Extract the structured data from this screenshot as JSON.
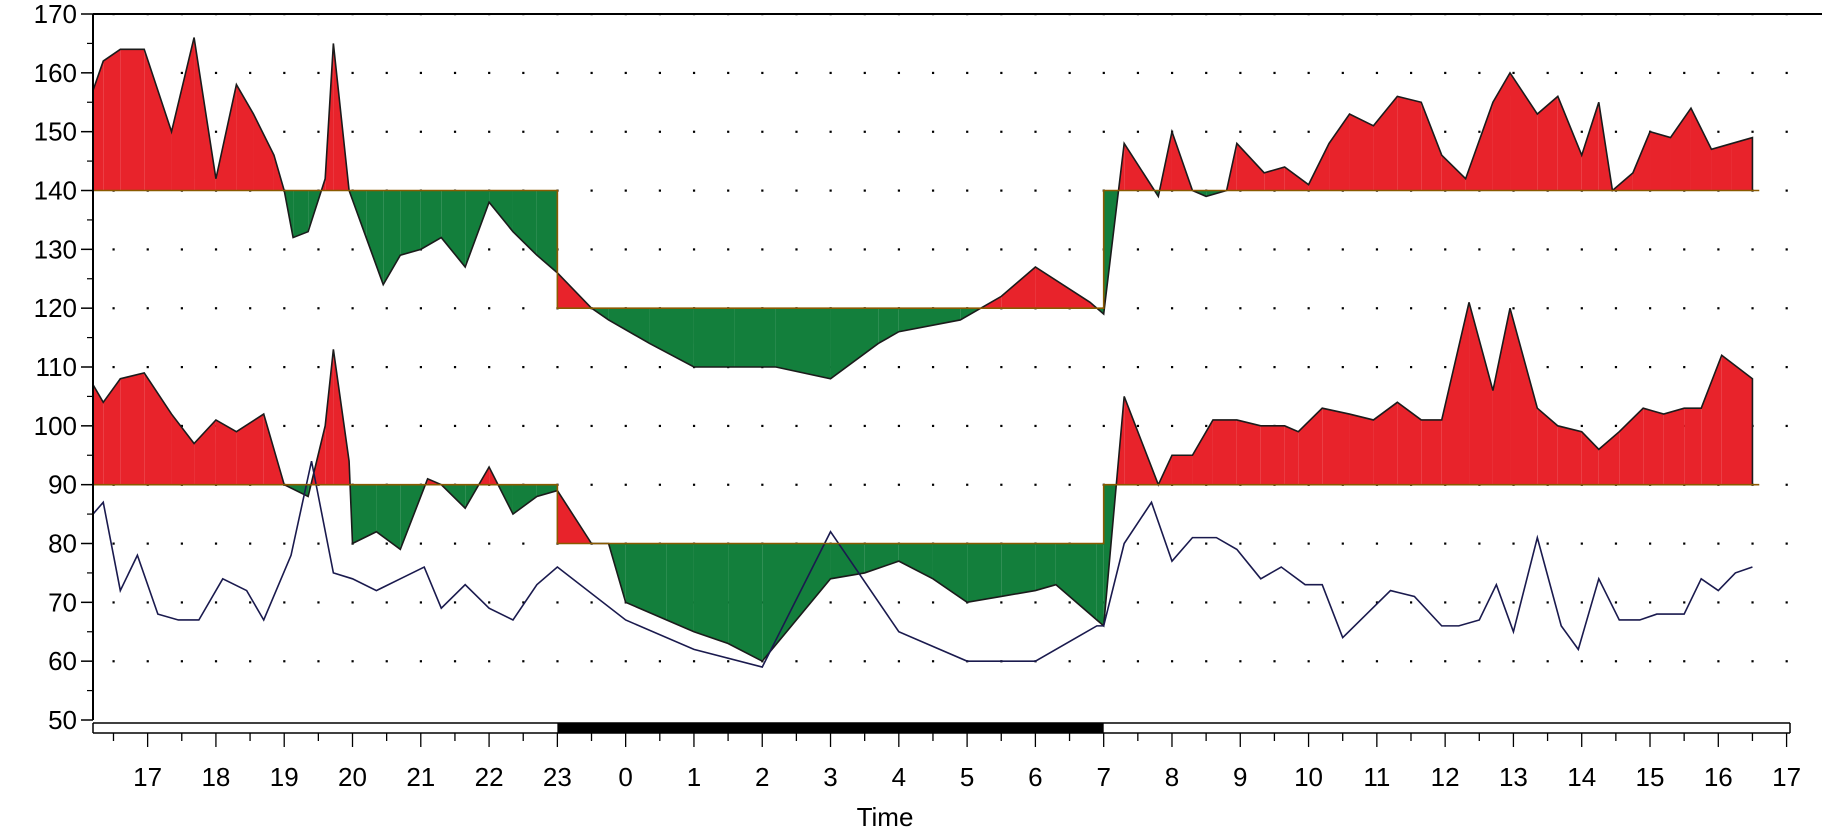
{
  "chart_data": {
    "type": "area",
    "xlabel": "Time",
    "ylabel": "",
    "ylim": [
      50,
      170
    ],
    "yticks": [
      50,
      60,
      70,
      80,
      90,
      100,
      110,
      120,
      130,
      140,
      150,
      160,
      170
    ],
    "xrange": [
      16.2,
      41.05
    ],
    "xticks": [
      {
        "x": 17,
        "label": "17"
      },
      {
        "x": 18,
        "label": "18"
      },
      {
        "x": 19,
        "label": "19"
      },
      {
        "x": 20,
        "label": "20"
      },
      {
        "x": 21,
        "label": "21"
      },
      {
        "x": 22,
        "label": "22"
      },
      {
        "x": 23,
        "label": "23"
      },
      {
        "x": 24,
        "label": "0"
      },
      {
        "x": 25,
        "label": "1"
      },
      {
        "x": 26,
        "label": "2"
      },
      {
        "x": 27,
        "label": "3"
      },
      {
        "x": 28,
        "label": "4"
      },
      {
        "x": 29,
        "label": "5"
      },
      {
        "x": 30,
        "label": "6"
      },
      {
        "x": 31,
        "label": "7"
      },
      {
        "x": 32,
        "label": "8"
      },
      {
        "x": 33,
        "label": "9"
      },
      {
        "x": 34,
        "label": "10"
      },
      {
        "x": 35,
        "label": "11"
      },
      {
        "x": 36,
        "label": "12"
      },
      {
        "x": 37,
        "label": "13"
      },
      {
        "x": 38,
        "label": "14"
      },
      {
        "x": 39,
        "label": "15"
      },
      {
        "x": 40,
        "label": "16"
      },
      {
        "x": 41,
        "label": "17"
      }
    ],
    "grid": "dotted",
    "night_period": [
      23,
      31
    ],
    "colors": {
      "above": "#e8232b",
      "below": "#137f3c",
      "line": "#1a1a4e"
    },
    "series": [
      {
        "role": "systolic",
        "threshold_steps": [
          {
            "x": 16.2,
            "y": 140
          },
          {
            "x": 23,
            "y": 140
          },
          {
            "x": 23,
            "y": 120
          },
          {
            "x": 31,
            "y": 120
          },
          {
            "x": 31,
            "y": 140
          },
          {
            "x": 40.6,
            "y": 140
          }
        ],
        "points": [
          [
            16.2,
            157
          ],
          [
            16.35,
            162
          ],
          [
            16.6,
            164
          ],
          [
            16.95,
            164
          ],
          [
            17.35,
            150
          ],
          [
            17.68,
            166
          ],
          [
            18.0,
            142
          ],
          [
            18.3,
            158
          ],
          [
            18.55,
            153
          ],
          [
            18.85,
            146
          ],
          [
            19.0,
            140
          ],
          [
            19.13,
            132
          ],
          [
            19.35,
            133
          ],
          [
            19.6,
            142
          ],
          [
            19.72,
            165
          ],
          [
            19.95,
            140
          ],
          [
            20.2,
            132
          ],
          [
            20.45,
            124
          ],
          [
            20.7,
            129
          ],
          [
            21.0,
            130
          ],
          [
            21.3,
            132
          ],
          [
            21.65,
            127
          ],
          [
            22.0,
            138
          ],
          [
            22.35,
            133
          ],
          [
            22.7,
            129
          ],
          [
            23.0,
            126
          ],
          [
            23.0,
            126
          ],
          [
            23.5,
            120
          ],
          [
            23.75,
            118
          ],
          [
            24.35,
            114
          ],
          [
            25.0,
            110
          ],
          [
            25.6,
            110
          ],
          [
            26.2,
            110
          ],
          [
            27.0,
            108
          ],
          [
            27.7,
            114
          ],
          [
            28.0,
            116
          ],
          [
            28.9,
            118
          ],
          [
            29.2,
            120
          ],
          [
            29.5,
            122
          ],
          [
            30.0,
            127
          ],
          [
            30.8,
            121
          ],
          [
            31.0,
            119
          ],
          [
            31.3,
            148
          ],
          [
            31.8,
            139
          ],
          [
            32.0,
            150
          ],
          [
            32.3,
            140
          ],
          [
            32.5,
            139
          ],
          [
            32.8,
            140
          ],
          [
            32.95,
            148
          ],
          [
            33.35,
            143
          ],
          [
            33.65,
            144
          ],
          [
            34.0,
            141
          ],
          [
            34.3,
            148
          ],
          [
            34.6,
            153
          ],
          [
            34.95,
            151
          ],
          [
            35.3,
            156
          ],
          [
            35.65,
            155
          ],
          [
            35.95,
            146
          ],
          [
            36.3,
            142
          ],
          [
            36.7,
            155
          ],
          [
            36.95,
            160
          ],
          [
            37.35,
            153
          ],
          [
            37.65,
            156
          ],
          [
            38.0,
            146
          ],
          [
            38.25,
            155
          ],
          [
            38.45,
            140
          ],
          [
            38.75,
            143
          ],
          [
            39.0,
            150
          ],
          [
            39.3,
            149
          ],
          [
            39.6,
            154
          ],
          [
            39.9,
            147
          ],
          [
            40.2,
            148
          ],
          [
            40.5,
            149
          ],
          [
            40.5,
            140
          ]
        ]
      },
      {
        "role": "diastolic",
        "threshold_steps": [
          {
            "x": 16.2,
            "y": 90
          },
          {
            "x": 23,
            "y": 90
          },
          {
            "x": 23,
            "y": 80
          },
          {
            "x": 31,
            "y": 80
          },
          {
            "x": 31,
            "y": 90
          },
          {
            "x": 40.6,
            "y": 90
          }
        ],
        "points": [
          [
            16.2,
            107
          ],
          [
            16.35,
            104
          ],
          [
            16.6,
            108
          ],
          [
            16.95,
            109
          ],
          [
            17.35,
            102
          ],
          [
            17.68,
            97
          ],
          [
            18.0,
            101
          ],
          [
            18.3,
            99
          ],
          [
            18.7,
            102
          ],
          [
            19.0,
            90
          ],
          [
            19.35,
            88
          ],
          [
            19.6,
            100
          ],
          [
            19.72,
            113
          ],
          [
            19.95,
            94
          ],
          [
            20.0,
            80
          ],
          [
            20.35,
            82
          ],
          [
            20.7,
            79
          ],
          [
            21.1,
            91
          ],
          [
            21.3,
            90
          ],
          [
            21.65,
            86
          ],
          [
            22.0,
            93
          ],
          [
            22.35,
            85
          ],
          [
            22.7,
            88
          ],
          [
            23.0,
            89
          ],
          [
            23.0,
            89
          ],
          [
            23.5,
            80
          ],
          [
            23.75,
            80
          ],
          [
            24.0,
            70
          ],
          [
            24.6,
            67
          ],
          [
            25.0,
            65
          ],
          [
            25.5,
            63
          ],
          [
            26.0,
            60
          ],
          [
            27.0,
            74
          ],
          [
            27.5,
            75
          ],
          [
            28.0,
            77
          ],
          [
            28.5,
            74
          ],
          [
            29.0,
            70
          ],
          [
            29.5,
            71
          ],
          [
            30.0,
            72
          ],
          [
            30.3,
            73
          ],
          [
            30.9,
            67
          ],
          [
            31.0,
            66
          ],
          [
            31.3,
            105
          ],
          [
            31.8,
            90
          ],
          [
            32.0,
            95
          ],
          [
            32.3,
            95
          ],
          [
            32.6,
            101
          ],
          [
            32.95,
            101
          ],
          [
            33.3,
            100
          ],
          [
            33.65,
            100
          ],
          [
            33.85,
            99
          ],
          [
            34.2,
            103
          ],
          [
            34.6,
            102
          ],
          [
            34.95,
            101
          ],
          [
            35.3,
            104
          ],
          [
            35.65,
            101
          ],
          [
            35.95,
            101
          ],
          [
            36.35,
            121
          ],
          [
            36.7,
            106
          ],
          [
            36.95,
            120
          ],
          [
            37.35,
            103
          ],
          [
            37.65,
            100
          ],
          [
            38.0,
            99
          ],
          [
            38.25,
            96
          ],
          [
            38.55,
            99
          ],
          [
            38.9,
            103
          ],
          [
            39.2,
            102
          ],
          [
            39.5,
            103
          ],
          [
            39.75,
            103
          ],
          [
            40.05,
            112
          ],
          [
            40.5,
            108
          ],
          [
            40.5,
            90
          ]
        ]
      },
      {
        "role": "heart_rate",
        "points": [
          [
            16.2,
            85
          ],
          [
            16.35,
            87
          ],
          [
            16.6,
            72
          ],
          [
            16.85,
            78
          ],
          [
            17.15,
            68
          ],
          [
            17.45,
            67
          ],
          [
            17.75,
            67
          ],
          [
            18.1,
            74
          ],
          [
            18.45,
            72
          ],
          [
            18.7,
            67
          ],
          [
            19.1,
            78
          ],
          [
            19.4,
            94
          ],
          [
            19.72,
            75
          ],
          [
            20.0,
            74
          ],
          [
            20.35,
            72
          ],
          [
            20.7,
            74
          ],
          [
            21.05,
            76
          ],
          [
            21.3,
            69
          ],
          [
            21.65,
            73
          ],
          [
            22.0,
            69
          ],
          [
            22.35,
            67
          ],
          [
            22.7,
            73
          ],
          [
            23.0,
            76
          ],
          [
            24.0,
            67
          ],
          [
            25.0,
            62
          ],
          [
            26.0,
            59
          ],
          [
            27.0,
            82
          ],
          [
            28.0,
            65
          ],
          [
            29.0,
            60
          ],
          [
            30.0,
            60
          ],
          [
            30.9,
            66
          ],
          [
            31.0,
            66
          ],
          [
            31.3,
            80
          ],
          [
            31.7,
            87
          ],
          [
            32.0,
            77
          ],
          [
            32.3,
            81
          ],
          [
            32.65,
            81
          ],
          [
            32.95,
            79
          ],
          [
            33.3,
            74
          ],
          [
            33.6,
            76
          ],
          [
            33.95,
            73
          ],
          [
            34.2,
            73
          ],
          [
            34.5,
            64
          ],
          [
            34.85,
            68
          ],
          [
            35.2,
            72
          ],
          [
            35.55,
            71
          ],
          [
            35.95,
            66
          ],
          [
            36.2,
            66
          ],
          [
            36.5,
            67
          ],
          [
            36.75,
            73
          ],
          [
            37.0,
            65
          ],
          [
            37.35,
            81
          ],
          [
            37.7,
            66
          ],
          [
            37.95,
            62
          ],
          [
            38.25,
            74
          ],
          [
            38.55,
            67
          ],
          [
            38.85,
            67
          ],
          [
            39.1,
            68
          ],
          [
            39.5,
            68
          ],
          [
            39.75,
            74
          ],
          [
            40.0,
            72
          ],
          [
            40.25,
            75
          ],
          [
            40.5,
            76
          ]
        ]
      }
    ]
  }
}
